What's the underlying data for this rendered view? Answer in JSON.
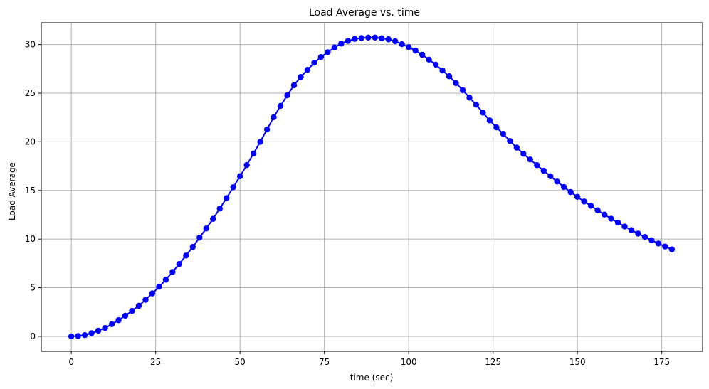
{
  "chart_data": {
    "type": "line",
    "title": "Load Average vs. time",
    "xlabel": "time (sec)",
    "ylabel": "Load Average",
    "xlim": [
      -8.9,
      187.1
    ],
    "ylim": [
      -1.54,
      32.24
    ],
    "x_ticks": [
      0,
      25,
      50,
      75,
      100,
      125,
      150,
      175
    ],
    "y_ticks": [
      0,
      5,
      10,
      15,
      20,
      25,
      30
    ],
    "grid": true,
    "series": [
      {
        "color": "#0000ff",
        "marker": "circle",
        "points": [
          [
            0,
            0.0
          ],
          [
            2,
            0.04
          ],
          [
            4,
            0.13
          ],
          [
            6,
            0.33
          ],
          [
            8,
            0.58
          ],
          [
            10,
            0.86
          ],
          [
            12,
            1.25
          ],
          [
            14,
            1.66
          ],
          [
            16,
            2.12
          ],
          [
            18,
            2.62
          ],
          [
            20,
            3.14
          ],
          [
            22,
            3.76
          ],
          [
            24,
            4.41
          ],
          [
            26,
            5.09
          ],
          [
            28,
            5.82
          ],
          [
            30,
            6.62
          ],
          [
            32,
            7.44
          ],
          [
            34,
            8.31
          ],
          [
            36,
            9.19
          ],
          [
            38,
            10.15
          ],
          [
            40,
            11.09
          ],
          [
            42,
            12.08
          ],
          [
            44,
            13.14
          ],
          [
            46,
            14.21
          ],
          [
            48,
            15.33
          ],
          [
            50,
            16.46
          ],
          [
            52,
            17.61
          ],
          [
            54,
            18.8
          ],
          [
            56,
            20.0
          ],
          [
            58,
            21.27
          ],
          [
            60,
            22.53
          ],
          [
            62,
            23.69
          ],
          [
            64,
            24.78
          ],
          [
            66,
            25.81
          ],
          [
            68,
            26.67
          ],
          [
            70,
            27.4
          ],
          [
            72,
            28.13
          ],
          [
            74,
            28.72
          ],
          [
            76,
            29.21
          ],
          [
            78,
            29.7
          ],
          [
            80,
            30.1
          ],
          [
            82,
            30.37
          ],
          [
            84,
            30.58
          ],
          [
            86,
            30.67
          ],
          [
            88,
            30.72
          ],
          [
            90,
            30.72
          ],
          [
            92,
            30.64
          ],
          [
            94,
            30.54
          ],
          [
            96,
            30.34
          ],
          [
            98,
            30.04
          ],
          [
            100,
            29.73
          ],
          [
            102,
            29.38
          ],
          [
            104,
            28.95
          ],
          [
            106,
            28.45
          ],
          [
            108,
            27.93
          ],
          [
            110,
            27.33
          ],
          [
            112,
            26.74
          ],
          [
            114,
            26.03
          ],
          [
            116,
            25.32
          ],
          [
            118,
            24.54
          ],
          [
            120,
            23.81
          ],
          [
            122,
            23.0
          ],
          [
            124,
            22.2
          ],
          [
            126,
            21.48
          ],
          [
            128,
            20.82
          ],
          [
            130,
            20.09
          ],
          [
            132,
            19.4
          ],
          [
            134,
            18.77
          ],
          [
            136,
            18.18
          ],
          [
            138,
            17.6
          ],
          [
            140,
            17.03
          ],
          [
            142,
            16.46
          ],
          [
            144,
            15.91
          ],
          [
            146,
            15.35
          ],
          [
            148,
            14.83
          ],
          [
            150,
            14.34
          ],
          [
            152,
            13.86
          ],
          [
            154,
            13.42
          ],
          [
            156,
            12.96
          ],
          [
            158,
            12.52
          ],
          [
            160,
            12.09
          ],
          [
            162,
            11.69
          ],
          [
            164,
            11.29
          ],
          [
            166,
            10.92
          ],
          [
            168,
            10.56
          ],
          [
            170,
            10.22
          ],
          [
            172,
            9.88
          ],
          [
            174,
            9.54
          ],
          [
            176,
            9.23
          ],
          [
            178,
            8.94
          ]
        ]
      }
    ]
  },
  "style": {
    "grid_color": "#b0b0b0",
    "axis_color": "#000000",
    "series_color": "#0000ff"
  }
}
